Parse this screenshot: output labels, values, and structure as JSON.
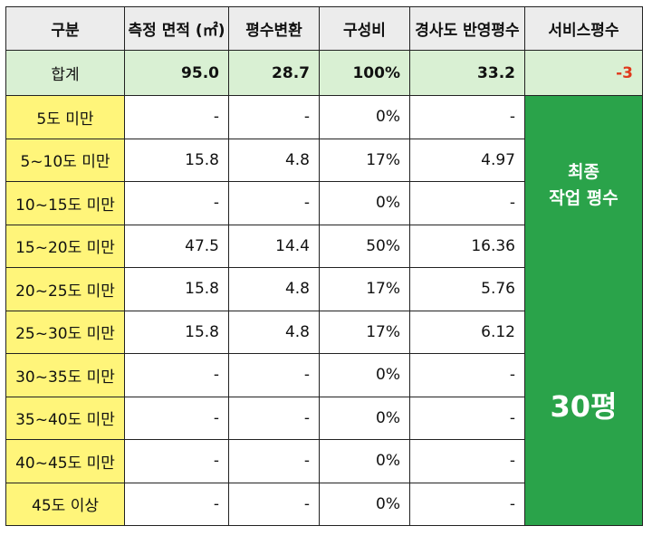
{
  "headers": [
    "구분",
    "측정 면적 (㎡)",
    "평수변환",
    "구성비",
    "경사도 반영평수",
    "서비스평수"
  ],
  "total_row": {
    "label": "합계",
    "area": "95.0",
    "pyeong": "28.7",
    "ratio": "100%",
    "slope_pyeong": "33.2",
    "service": "-3"
  },
  "rows": [
    {
      "label": "5도 미만",
      "area": "-",
      "pyeong": "-",
      "ratio": "0%",
      "slope_pyeong": "-"
    },
    {
      "label": "5~10도 미만",
      "area": "15.8",
      "pyeong": "4.8",
      "ratio": "17%",
      "slope_pyeong": "4.97"
    },
    {
      "label": "10~15도 미만",
      "area": "-",
      "pyeong": "-",
      "ratio": "0%",
      "slope_pyeong": "-"
    },
    {
      "label": "15~20도 미만",
      "area": "47.5",
      "pyeong": "14.4",
      "ratio": "50%",
      "slope_pyeong": "16.36"
    },
    {
      "label": "20~25도 미만",
      "area": "15.8",
      "pyeong": "4.8",
      "ratio": "17%",
      "slope_pyeong": "5.76"
    },
    {
      "label": "25~30도 미만",
      "area": "15.8",
      "pyeong": "4.8",
      "ratio": "17%",
      "slope_pyeong": "6.12"
    },
    {
      "label": "30~35도 미만",
      "area": "-",
      "pyeong": "-",
      "ratio": "0%",
      "slope_pyeong": "-"
    },
    {
      "label": "35~40도 미만",
      "area": "-",
      "pyeong": "-",
      "ratio": "0%",
      "slope_pyeong": "-"
    },
    {
      "label": "40~45도 미만",
      "area": "-",
      "pyeong": "-",
      "ratio": "0%",
      "slope_pyeong": "-"
    },
    {
      "label": "45도 이상",
      "area": "-",
      "pyeong": "-",
      "ratio": "0%",
      "slope_pyeong": "-"
    }
  ],
  "final": {
    "title_line1": "최종",
    "title_line2": "작업 평수",
    "value": "30평"
  },
  "colors": {
    "header_bg": "#ececec",
    "total_bg": "#d9f0d3",
    "label_bg": "#fff57a",
    "final_bg": "#2aa34a",
    "negative_text": "#e0391c"
  }
}
